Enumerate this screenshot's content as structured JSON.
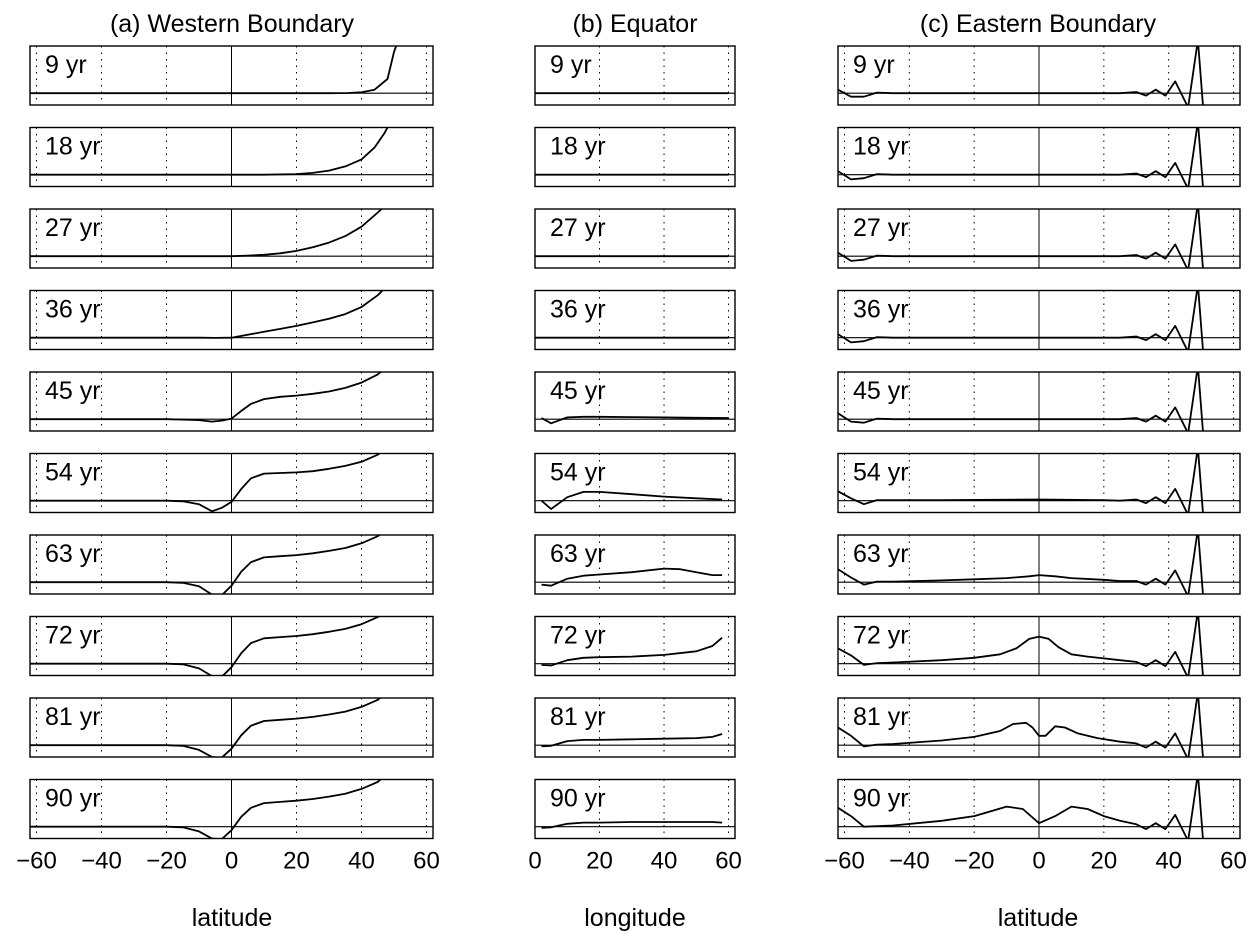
{
  "chart_data": [
    {
      "type": "line",
      "title": "(a) Western Boundary",
      "xlabel": "latitude",
      "xlim": [
        -62,
        62
      ],
      "ylim": [
        -1,
        4
      ],
      "xticks": [
        -60,
        -40,
        -20,
        0,
        20,
        40,
        60
      ],
      "xtick_labels": [
        "−60",
        "−40",
        "−20",
        "0",
        "20",
        "40",
        "60"
      ],
      "grid": true,
      "panels": [
        {
          "label": "9 yr",
          "x": [
            -62,
            -40,
            -20,
            -10,
            0,
            10,
            20,
            30,
            36,
            40,
            44,
            48,
            50,
            52
          ],
          "y": [
            0,
            0,
            0,
            0,
            0,
            0,
            0,
            0,
            0.02,
            0.08,
            0.3,
            1.2,
            3.5,
            5
          ]
        },
        {
          "label": "18 yr",
          "x": [
            -62,
            -40,
            -20,
            -10,
            0,
            10,
            20,
            25,
            30,
            35,
            40,
            44,
            47,
            50
          ],
          "y": [
            0,
            0,
            0,
            0,
            0,
            0,
            0.05,
            0.15,
            0.35,
            0.7,
            1.3,
            2.3,
            3.5,
            5
          ]
        },
        {
          "label": "27 yr",
          "x": [
            -62,
            -40,
            -20,
            -10,
            0,
            5,
            10,
            15,
            20,
            25,
            30,
            35,
            40,
            45,
            50
          ],
          "y": [
            0,
            0,
            0,
            0,
            0,
            0.05,
            0.12,
            0.25,
            0.45,
            0.75,
            1.15,
            1.7,
            2.5,
            3.7,
            5
          ]
        },
        {
          "label": "36 yr",
          "x": [
            -62,
            -40,
            -20,
            -10,
            -5,
            0,
            5,
            10,
            15,
            20,
            25,
            30,
            35,
            40,
            45,
            50
          ],
          "y": [
            0,
            0,
            0,
            0,
            -0.02,
            0,
            0.25,
            0.5,
            0.75,
            1.0,
            1.3,
            1.6,
            2.0,
            2.6,
            3.6,
            5
          ]
        },
        {
          "label": "45 yr",
          "x": [
            -62,
            -40,
            -20,
            -15,
            -10,
            -6,
            -3,
            0,
            3,
            6,
            10,
            15,
            20,
            25,
            30,
            35,
            40,
            45,
            50
          ],
          "y": [
            0,
            0,
            0,
            -0.03,
            -0.08,
            -0.2,
            -0.12,
            0.05,
            0.7,
            1.3,
            1.7,
            1.9,
            2.0,
            2.15,
            2.35,
            2.65,
            3.1,
            3.8,
            5
          ]
        },
        {
          "label": "54 yr",
          "x": [
            -62,
            -40,
            -20,
            -15,
            -10,
            -6,
            -3,
            0,
            3,
            6,
            10,
            15,
            20,
            25,
            30,
            35,
            40,
            45,
            50
          ],
          "y": [
            0,
            0,
            0,
            -0.05,
            -0.3,
            -0.9,
            -0.6,
            -0.1,
            1.0,
            1.9,
            2.3,
            2.35,
            2.4,
            2.5,
            2.7,
            2.95,
            3.3,
            3.9,
            5
          ]
        },
        {
          "label": "63 yr",
          "x": [
            -62,
            -40,
            -20,
            -15,
            -10,
            -6,
            -3,
            0,
            3,
            6,
            10,
            15,
            20,
            25,
            30,
            35,
            40,
            45,
            50
          ],
          "y": [
            0,
            0,
            0,
            -0.05,
            -0.35,
            -1.05,
            -1.1,
            -0.3,
            0.9,
            1.7,
            2.1,
            2.2,
            2.3,
            2.45,
            2.65,
            2.9,
            3.3,
            3.9,
            5
          ]
        },
        {
          "label": "72 yr",
          "x": [
            -62,
            -40,
            -20,
            -15,
            -10,
            -6,
            -3,
            0,
            3,
            6,
            10,
            15,
            20,
            25,
            30,
            35,
            40,
            45,
            50
          ],
          "y": [
            0,
            0,
            0,
            -0.05,
            -0.4,
            -1.05,
            -1.1,
            -0.3,
            0.9,
            1.75,
            2.15,
            2.25,
            2.35,
            2.5,
            2.7,
            2.95,
            3.35,
            3.95,
            5
          ]
        },
        {
          "label": "81 yr",
          "x": [
            -62,
            -40,
            -20,
            -15,
            -10,
            -6,
            -3,
            0,
            3,
            6,
            10,
            15,
            20,
            25,
            30,
            35,
            40,
            45,
            50
          ],
          "y": [
            0,
            0,
            0,
            -0.05,
            -0.4,
            -1.0,
            -1.05,
            -0.3,
            0.85,
            1.65,
            2.05,
            2.15,
            2.25,
            2.4,
            2.6,
            2.85,
            3.25,
            3.85,
            5
          ]
        },
        {
          "label": "90 yr",
          "x": [
            -62,
            -40,
            -20,
            -15,
            -10,
            -6,
            -3,
            0,
            3,
            6,
            10,
            15,
            20,
            25,
            30,
            35,
            40,
            45,
            50
          ],
          "y": [
            0,
            0,
            0,
            -0.05,
            -0.4,
            -1.0,
            -1.05,
            -0.3,
            0.85,
            1.6,
            2.0,
            2.1,
            2.2,
            2.35,
            2.55,
            2.8,
            3.2,
            3.8,
            5
          ]
        }
      ]
    },
    {
      "type": "line",
      "title": "(b) Equator",
      "xlabel": "longitude",
      "xlim": [
        0,
        62
      ],
      "ylim": [
        -1,
        4
      ],
      "xticks": [
        0,
        20,
        40,
        60
      ],
      "xtick_labels": [
        "0",
        "20",
        "40",
        "60"
      ],
      "grid": true,
      "panels": [
        {
          "label": "9 yr",
          "x": [
            0,
            20,
            40,
            60
          ],
          "y": [
            0,
            0,
            0,
            0
          ]
        },
        {
          "label": "18 yr",
          "x": [
            0,
            20,
            40,
            60
          ],
          "y": [
            0,
            0,
            0,
            0
          ]
        },
        {
          "label": "27 yr",
          "x": [
            0,
            20,
            40,
            60
          ],
          "y": [
            0,
            0,
            0,
            0
          ]
        },
        {
          "label": "36 yr",
          "x": [
            0,
            20,
            40,
            60
          ],
          "y": [
            0,
            0,
            0,
            0
          ]
        },
        {
          "label": "45 yr",
          "x": [
            2,
            5,
            10,
            15,
            20,
            30,
            40,
            50,
            60
          ],
          "y": [
            0.1,
            -0.35,
            0.15,
            0.2,
            0.2,
            0.18,
            0.15,
            0.12,
            0.1
          ]
        },
        {
          "label": "54 yr",
          "x": [
            2,
            5,
            10,
            15,
            20,
            30,
            40,
            50,
            58
          ],
          "y": [
            0,
            -0.7,
            0.3,
            0.75,
            0.75,
            0.55,
            0.35,
            0.2,
            0.1
          ]
        },
        {
          "label": "63 yr",
          "x": [
            2,
            5,
            10,
            15,
            20,
            30,
            40,
            45,
            50,
            55,
            58
          ],
          "y": [
            -0.2,
            -0.3,
            0.3,
            0.55,
            0.65,
            0.85,
            1.15,
            1.1,
            0.85,
            0.6,
            0.6
          ]
        },
        {
          "label": "72 yr",
          "x": [
            2,
            5,
            10,
            15,
            20,
            30,
            40,
            50,
            55,
            58
          ],
          "y": [
            -0.1,
            -0.15,
            0.3,
            0.5,
            0.55,
            0.6,
            0.75,
            1.05,
            1.5,
            2.2
          ]
        },
        {
          "label": "81 yr",
          "x": [
            2,
            5,
            10,
            15,
            20,
            30,
            40,
            50,
            55,
            58
          ],
          "y": [
            -0.1,
            -0.05,
            0.35,
            0.45,
            0.45,
            0.5,
            0.55,
            0.6,
            0.7,
            0.95
          ]
        },
        {
          "label": "90 yr",
          "x": [
            2,
            5,
            10,
            15,
            20,
            30,
            40,
            50,
            55,
            58
          ],
          "y": [
            -0.1,
            -0.05,
            0.25,
            0.35,
            0.35,
            0.4,
            0.4,
            0.4,
            0.4,
            0.35
          ]
        }
      ]
    },
    {
      "type": "line",
      "title": "(c) Eastern Boundary",
      "xlabel": "latitude",
      "xlim": [
        -62,
        62
      ],
      "ylim": [
        -1,
        4
      ],
      "xticks": [
        -60,
        -40,
        -20,
        0,
        20,
        40,
        60
      ],
      "xtick_labels": [
        "−60",
        "−40",
        "−20",
        "0",
        "20",
        "40",
        "60"
      ],
      "grid": true,
      "panels": [
        {
          "label": "9 yr",
          "x": [
            -62,
            -58,
            -54,
            -50,
            -45,
            -30,
            0,
            25,
            30,
            33,
            36,
            39,
            42,
            46,
            49,
            51
          ],
          "y": [
            0.3,
            -0.3,
            -0.3,
            0.05,
            0,
            0,
            0,
            0,
            0.1,
            -0.2,
            0.3,
            -0.2,
            1.0,
            -1.2,
            4.5,
            -2.5
          ]
        },
        {
          "label": "18 yr",
          "x": [
            -62,
            -58,
            -54,
            -50,
            -45,
            -30,
            0,
            25,
            30,
            33,
            36,
            39,
            42,
            46,
            49,
            51
          ],
          "y": [
            0.3,
            -0.4,
            -0.3,
            0.05,
            0,
            0,
            0,
            0,
            0.1,
            -0.2,
            0.3,
            -0.2,
            1.0,
            -1.2,
            4.5,
            -2.5
          ]
        },
        {
          "label": "27 yr",
          "x": [
            -62,
            -58,
            -54,
            -50,
            -45,
            -30,
            0,
            25,
            30,
            33,
            36,
            39,
            42,
            46,
            49,
            51
          ],
          "y": [
            0.3,
            -0.4,
            -0.3,
            0.05,
            0,
            0,
            0,
            0,
            0.1,
            -0.2,
            0.3,
            -0.2,
            1.0,
            -1.2,
            4.5,
            -2.5
          ]
        },
        {
          "label": "36 yr",
          "x": [
            -62,
            -58,
            -54,
            -50,
            -45,
            -30,
            0,
            25,
            30,
            33,
            36,
            39,
            42,
            46,
            49,
            51
          ],
          "y": [
            0.3,
            -0.4,
            -0.3,
            0.05,
            0,
            0,
            0,
            0,
            0.1,
            -0.2,
            0.3,
            -0.2,
            1.0,
            -1.2,
            4.5,
            -2.5
          ]
        },
        {
          "label": "45 yr",
          "x": [
            -62,
            -58,
            -54,
            -50,
            -45,
            -30,
            0,
            25,
            30,
            33,
            36,
            39,
            42,
            46,
            49,
            51
          ],
          "y": [
            0.5,
            -0.2,
            -0.3,
            0.05,
            0,
            0,
            0,
            0,
            0.1,
            -0.2,
            0.3,
            -0.2,
            1.0,
            -1.2,
            4.5,
            -2.5
          ]
        },
        {
          "label": "54 yr",
          "x": [
            -62,
            -58,
            -54,
            -50,
            -45,
            -30,
            0,
            20,
            25,
            30,
            33,
            36,
            39,
            42,
            46,
            49,
            51
          ],
          "y": [
            0.8,
            0.2,
            -0.3,
            0.05,
            0.05,
            0.05,
            0.1,
            0.05,
            0,
            0.1,
            -0.2,
            0.3,
            -0.2,
            1.0,
            -1.2,
            4.5,
            -2.5
          ]
        },
        {
          "label": "63 yr",
          "x": [
            -62,
            -58,
            -54,
            -50,
            -45,
            -30,
            -20,
            -10,
            -3,
            0,
            5,
            10,
            20,
            25,
            30,
            33,
            36,
            39,
            42,
            46,
            49,
            51
          ],
          "y": [
            1.1,
            0.4,
            -0.2,
            0.05,
            0.05,
            0.15,
            0.25,
            0.35,
            0.5,
            0.6,
            0.5,
            0.35,
            0.2,
            0.1,
            0.1,
            -0.2,
            0.3,
            -0.2,
            1.0,
            -1.2,
            4.5,
            -2.5
          ]
        },
        {
          "label": "72 yr",
          "x": [
            -62,
            -58,
            -54,
            -50,
            -45,
            -30,
            -20,
            -12,
            -7,
            -3,
            0,
            3,
            6,
            10,
            15,
            20,
            25,
            30,
            33,
            36,
            39,
            42,
            46,
            49,
            51
          ],
          "y": [
            1.3,
            0.7,
            -0.1,
            0.05,
            0.1,
            0.3,
            0.5,
            0.8,
            1.3,
            2.1,
            2.3,
            2.1,
            1.4,
            0.8,
            0.6,
            0.45,
            0.3,
            0.15,
            -0.2,
            0.3,
            -0.2,
            1.0,
            -1.2,
            4.5,
            -2.5
          ]
        },
        {
          "label": "81 yr",
          "x": [
            -62,
            -58,
            -54,
            -50,
            -45,
            -30,
            -20,
            -12,
            -8,
            -4,
            -2,
            0,
            2,
            5,
            8,
            12,
            18,
            25,
            30,
            33,
            36,
            39,
            42,
            46,
            49,
            51
          ],
          "y": [
            1.5,
            0.8,
            -0.1,
            0.05,
            0.1,
            0.4,
            0.7,
            1.2,
            1.8,
            1.9,
            1.5,
            0.8,
            0.8,
            1.6,
            1.5,
            1.0,
            0.6,
            0.3,
            0.15,
            -0.2,
            0.3,
            -0.2,
            1.0,
            -1.2,
            4.5,
            -2.5
          ]
        },
        {
          "label": "90 yr",
          "x": [
            -62,
            -58,
            -54,
            -50,
            -45,
            -30,
            -20,
            -10,
            -5,
            0,
            5,
            10,
            15,
            20,
            25,
            30,
            33,
            36,
            39,
            42,
            46,
            49,
            51
          ],
          "y": [
            1.6,
            0.9,
            0,
            0.05,
            0.1,
            0.5,
            0.9,
            1.7,
            1.5,
            0.3,
            0.9,
            1.7,
            1.5,
            0.9,
            0.5,
            0.2,
            -0.2,
            0.3,
            -0.2,
            1.0,
            -1.2,
            4.5,
            -2.5
          ]
        }
      ]
    }
  ]
}
